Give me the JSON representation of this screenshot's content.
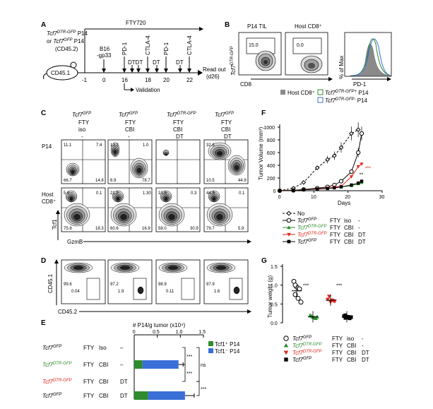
{
  "panels": {
    "A": "A",
    "B": "B",
    "C": "C",
    "D": "D",
    "E": "E",
    "F": "F",
    "G": "G"
  },
  "panel_a": {
    "donor_line1": "Tcf7",
    "donor_sup1": "DTR-GFP",
    "donor_p14": " P14",
    "donor_line2_pre": "or ",
    "donor_line2": "Tcf7",
    "donor_sup2": "GFP",
    "donor_p14b": " P14",
    "donor_line3": "(CD45.2)",
    "mouse": "CD45.1",
    "fty": "FTY720",
    "b16": "B16",
    "gp33": "-gp33",
    "pd1": "PD-1",
    "ctla4": "CTLA-4",
    "dt": "DT",
    "dtdt": "DTDT",
    "days": [
      "-1",
      "0",
      "16",
      "18",
      "20",
      "22"
    ],
    "readout": "Read out",
    "readout_day": "(d26)",
    "validation": "Validation"
  },
  "panel_b": {
    "col1": "P14 TIL",
    "col2": "Host CD8⁺",
    "ylabel_italic": "Tcf7",
    "ylabel_sup": "DTR-GFP",
    "xlabel": "CD8",
    "val1": "15.0",
    "val2": "0.0",
    "hist_ylabel": "% of Max",
    "hist_xlabel": "PD-1",
    "legend": [
      {
        "label": "Host CD8⁺",
        "color": "#8a8a8a"
      },
      {
        "label_italic": "Tcf7",
        "label_sup": "DTR-GFP+",
        "label_tail": " P14",
        "color": "#2e8b2e"
      },
      {
        "label_italic": "Tcf7",
        "label_sup": "DTR-GFP-",
        "label_tail": " P14",
        "color": "#3a6fd8"
      }
    ]
  },
  "panel_c": {
    "columns": [
      {
        "geno": "Tcf7",
        "sup": "GFP",
        "color": "#000000",
        "l2": "FTY",
        "l3": "iso",
        "l4": "-"
      },
      {
        "geno": "Tcf7",
        "sup": "GFP",
        "color": "#000000",
        "l2": "FTY",
        "l3": "CBI",
        "l4": "-"
      },
      {
        "geno": "Tcf7",
        "sup": "DTR-GFP",
        "color": "#000000",
        "l2": "FTY",
        "l3": "CBI",
        "l4": "DT"
      },
      {
        "geno": "Tcf7",
        "sup": "GFP",
        "color": "#000000",
        "l2": "FTY",
        "l3": "CBI",
        "l4": "DT"
      }
    ],
    "row1": "P14",
    "row2a": "Host",
    "row2b": "CD8⁺",
    "ylabel": "Tcf1",
    "xlabel": "GzmB",
    "row1_vals": [
      [
        "11.1",
        "7.4",
        "66.7",
        "14.8"
      ],
      [
        "13.3",
        "1.0",
        "6.9",
        "78.7"
      ],
      [
        "",
        "",
        "",
        ""
      ],
      [
        "32.6",
        "",
        "10.5",
        "44.9"
      ]
    ],
    "row2_vals": [
      [
        "5.6",
        "0.1",
        "75.8",
        "18.3"
      ],
      [
        "21.2",
        "1.30",
        "60.6",
        "16.9"
      ],
      [
        "10.8",
        "0.3",
        "58.0",
        "30.9"
      ],
      [
        "44.9",
        "0.1",
        "79.7",
        "5.9"
      ]
    ]
  },
  "panel_d": {
    "ylabel": "CD45.1",
    "xlabel": "CD45.2",
    "vals": [
      [
        "99.6",
        "0.04"
      ],
      [
        "97.2",
        "1.9"
      ],
      [
        "98.9",
        "0.11"
      ],
      [
        "97.9",
        "1.6"
      ]
    ]
  },
  "panel_e": {
    "title": "# P14/g tumor (x10⁴)",
    "ticks": [
      "0",
      "0.5",
      "1.0",
      "1.5"
    ],
    "legend": [
      {
        "label": "Tcf1⁺ P14",
        "color": "#2e8b2e"
      },
      {
        "label": "Tcf1⁻ P14",
        "color": "#3a6fd8"
      }
    ],
    "rows": [
      {
        "geno": "Tcf7",
        "sup": "GFP",
        "color": "#000000",
        "c1": "FTY",
        "c2": "Iso",
        "c3": "–"
      },
      {
        "geno": "Tcf7",
        "sup": "DTR-GFP",
        "color": "#2e8b2e",
        "c1": "FTY",
        "c2": "CBI",
        "c3": "–"
      },
      {
        "geno": "Tcf7",
        "sup": "DTR-GFP",
        "color": "#e0261f",
        "c1": "FTY",
        "c2": "CBI",
        "c3": "DT"
      },
      {
        "geno": "Tcf7",
        "sup": "GFP",
        "color": "#000000",
        "c1": "FTY",
        "c2": "CBI",
        "c3": "DT"
      }
    ],
    "sig": [
      "***",
      "***",
      "ns",
      "***"
    ]
  },
  "chart_data": [
    {
      "type": "bar",
      "orientation": "horizontal",
      "stacked": true,
      "title": "# P14/g tumor (x10⁴)",
      "categories": [
        "Tcf7GFP FTY Iso -",
        "Tcf7DTR-GFP FTY CBI -",
        "Tcf7DTR-GFP FTY CBI DT",
        "Tcf7GFP FTY CBI DT"
      ],
      "series": [
        {
          "name": "Tcf1⁺ P14",
          "values": [
            0.0,
            0.18,
            0.0,
            0.3
          ],
          "color": "#2e8b2e"
        },
        {
          "name": "Tcf1⁻ P14",
          "values": [
            0.0,
            0.78,
            0.0,
            0.8
          ],
          "color": "#3a6fd8"
        }
      ],
      "errors": [
        0.0,
        0.1,
        0.0,
        0.2
      ],
      "xlim": [
        0,
        1.5
      ]
    },
    {
      "type": "line",
      "ylabel": "Tumor Volume (mm³)",
      "xlabel": "Days",
      "xlim": [
        0,
        30
      ],
      "ylim": [
        0,
        1000
      ],
      "xticks": [
        0,
        10,
        20,
        30
      ],
      "yticks": [
        0,
        200,
        400,
        600,
        800,
        1000
      ],
      "series": [
        {
          "name": "No",
          "style": "dashed-diamond",
          "color": "#000000",
          "x": [
            0,
            4,
            7,
            11,
            14,
            16,
            18,
            21,
            23
          ],
          "y": [
            0,
            40,
            130,
            360,
            490,
            550,
            680,
            900,
            960
          ]
        },
        {
          "name": "Tcf7GFP FTY iso",
          "style": "open-circle",
          "color": "#000000",
          "x": [
            0,
            4,
            7,
            11,
            14,
            16,
            18,
            21,
            23,
            24
          ],
          "y": [
            0,
            5,
            20,
            40,
            60,
            90,
            150,
            300,
            600,
            900
          ]
        },
        {
          "name": "Tcf7DTR-GFP FTY CBI",
          "style": "triangle",
          "color": "#2e8b2e",
          "x": [
            0,
            4,
            7,
            11,
            14,
            16,
            18,
            21,
            23,
            24
          ],
          "y": [
            0,
            5,
            15,
            30,
            40,
            50,
            60,
            80,
            110,
            130
          ]
        },
        {
          "name": "Tcf7DTR-GFP FTY CBI DT",
          "style": "inv-triangle",
          "color": "#e0261f",
          "x": [
            0,
            4,
            7,
            11,
            14,
            16,
            18,
            21,
            23,
            24
          ],
          "y": [
            0,
            5,
            15,
            30,
            40,
            55,
            70,
            220,
            380,
            420
          ]
        },
        {
          "name": "Tcf7GFP FTY CBI DT",
          "style": "square",
          "color": "#000000",
          "x": [
            0,
            4,
            7,
            11,
            14,
            16,
            18,
            21,
            23,
            24
          ],
          "y": [
            0,
            5,
            15,
            25,
            35,
            45,
            60,
            90,
            120,
            150
          ]
        }
      ],
      "annotations": [
        "***",
        "**"
      ]
    },
    {
      "type": "scatter",
      "ylabel": "Tumor weight (g)",
      "ylim": [
        0,
        1.5
      ],
      "yticks": [
        0.0,
        0.5,
        1.0,
        1.5
      ],
      "groups": [
        {
          "name": "Tcf7GFP FTY iso",
          "marker": "open-circle",
          "color": "#000000",
          "values": [
            1.1,
            0.95,
            0.9,
            0.75,
            0.65,
            0.55,
            1.0
          ],
          "mean": 0.85
        },
        {
          "name": "Tcf7DTR-GFP FTY CBI",
          "marker": "triangle",
          "color": "#2e8b2e",
          "values": [
            0.2,
            0.15,
            0.12,
            0.18,
            0.14,
            0.16
          ],
          "mean": 0.16
        },
        {
          "name": "Tcf7DTR-GFP FTY CBI DT",
          "marker": "inv-triangle",
          "color": "#e0261f",
          "values": [
            0.62,
            0.55,
            0.58,
            0.7,
            0.6,
            0.57
          ],
          "mean": 0.6
        },
        {
          "name": "Tcf7GFP FTY CBI DT",
          "marker": "square",
          "color": "#000000",
          "values": [
            0.18,
            0.14,
            0.12,
            0.2,
            0.16,
            0.15,
            0.13
          ],
          "mean": 0.16
        }
      ],
      "annotations": [
        "***",
        "***"
      ]
    }
  ],
  "panel_f": {
    "ylabel": "Tumor Volume (mm³)",
    "xlabel": "Days",
    "yticks": [
      "0",
      "200",
      "400",
      "600",
      "800",
      "1000"
    ],
    "xticks": [
      "0",
      "10",
      "20",
      "30"
    ],
    "sig1": "***",
    "sig2": "**",
    "legend": [
      {
        "label": "No",
        "c1": "",
        "c2": "",
        "c3": ""
      },
      {
        "geno": "Tcf7",
        "sup": "GFP",
        "color": "#000000",
        "c1": "FTY",
        "c2": "iso",
        "c3": "-"
      },
      {
        "geno": "Tcf7",
        "sup": "DTR-GFP",
        "color": "#2e8b2e",
        "c1": "FTY",
        "c2": "CBI",
        "c3": "-"
      },
      {
        "geno": "Tcf7",
        "sup": "DTR-GFP",
        "color": "#e0261f",
        "c1": "FTY",
        "c2": "CBI",
        "c3": "DT"
      },
      {
        "geno": "Tcf7",
        "sup": "GFP",
        "color": "#000000",
        "c1": "FTY",
        "c2": "CBI",
        "c3": "DT"
      }
    ]
  },
  "panel_g": {
    "ylabel": "Tumor weight (g)",
    "yticks": [
      "0.0",
      "0.5",
      "1.0",
      "1.5"
    ],
    "sig1": "***",
    "sig2": "***",
    "legend": [
      {
        "geno": "Tcf7",
        "sup": "GFP",
        "color": "#000000",
        "c1": "FTY",
        "c2": "iso",
        "c3": "-"
      },
      {
        "geno": "Tcf7",
        "sup": "DTR-GFP",
        "color": "#2e8b2e",
        "c1": "FTY",
        "c2": "CBI",
        "c3": "-"
      },
      {
        "geno": "Tcf7",
        "sup": "DTR-GFP",
        "color": "#e0261f",
        "c1": "FTY",
        "c2": "CBI",
        "c3": "DT"
      },
      {
        "geno": "Tcf7",
        "sup": "GFP",
        "color": "#000000",
        "c1": "FTY",
        "c2": "CBI",
        "c3": "DT"
      }
    ]
  }
}
